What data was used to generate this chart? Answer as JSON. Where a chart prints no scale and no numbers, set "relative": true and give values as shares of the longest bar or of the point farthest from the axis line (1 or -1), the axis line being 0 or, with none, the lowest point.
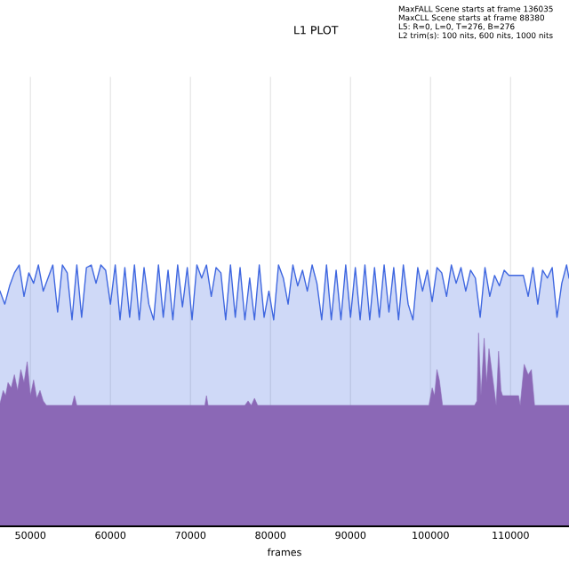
{
  "chart_data": {
    "type": "area",
    "title": "L1 PLOT",
    "xlabel": "frames",
    "relative": true,
    "annotations": [
      "MaxFALL Scene starts at frame 136035",
      "MaxCLL Scene starts at frame 88380",
      "L5: R=0, L=0, T=276, B=276",
      "L2 trim(s): 100 nits, 600 nits, 1000 nits"
    ],
    "xlim": [
      46200,
      117300
    ],
    "xticks": [
      50000,
      60000,
      70000,
      80000,
      90000,
      100000,
      110000
    ],
    "grid": "x",
    "series": [
      {
        "color": "#3f67e0",
        "x": [
          46200,
          46800,
          47400,
          48000,
          48600,
          49200,
          49800,
          50400,
          51000,
          51600,
          52200,
          52800,
          53400,
          54000,
          54600,
          55200,
          55800,
          56400,
          57000,
          57600,
          58200,
          58800,
          59400,
          60000,
          60600,
          61200,
          61800,
          62400,
          63000,
          63600,
          64200,
          64800,
          65400,
          66000,
          66600,
          67200,
          67800,
          68400,
          69000,
          69600,
          70200,
          70800,
          71400,
          72000,
          72600,
          73200,
          73800,
          74400,
          75000,
          75600,
          76200,
          76800,
          77400,
          78000,
          78600,
          79200,
          79800,
          80400,
          81000,
          81600,
          82200,
          82800,
          83400,
          84000,
          84600,
          85200,
          85800,
          86400,
          87000,
          87600,
          88200,
          88800,
          89400,
          90000,
          90600,
          91200,
          91800,
          92400,
          93000,
          93600,
          94200,
          94800,
          95400,
          96000,
          96600,
          97200,
          97800,
          98400,
          99000,
          99600,
          100200,
          100800,
          101400,
          102000,
          102600,
          103200,
          103800,
          104400,
          105000,
          105600,
          106200,
          106800,
          107400,
          108000,
          108600,
          109200,
          109800,
          110400,
          111000,
          111600,
          112200,
          112800,
          113400,
          114000,
          114600,
          115200,
          115800,
          116400,
          117000,
          117300
        ],
        "values": [
          0.9,
          0.85,
          0.92,
          0.97,
          1.0,
          0.88,
          0.97,
          0.93,
          1.0,
          0.9,
          0.95,
          1.0,
          0.82,
          1.0,
          0.97,
          0.79,
          1.0,
          0.8,
          0.99,
          1.0,
          0.93,
          1.0,
          0.98,
          0.85,
          1.0,
          0.79,
          0.99,
          0.8,
          1.0,
          0.79,
          0.99,
          0.85,
          0.79,
          1.0,
          0.8,
          0.98,
          0.79,
          1.0,
          0.84,
          0.99,
          0.79,
          1.0,
          0.95,
          1.0,
          0.88,
          0.99,
          0.97,
          0.79,
          1.0,
          0.8,
          0.99,
          0.79,
          0.95,
          0.79,
          1.0,
          0.8,
          0.9,
          0.79,
          1.0,
          0.95,
          0.85,
          1.0,
          0.92,
          0.98,
          0.9,
          1.0,
          0.93,
          0.79,
          1.0,
          0.79,
          0.98,
          0.79,
          1.0,
          0.8,
          0.99,
          0.79,
          1.0,
          0.79,
          0.99,
          0.8,
          1.0,
          0.82,
          0.99,
          0.79,
          1.0,
          0.85,
          0.79,
          0.99,
          0.9,
          0.98,
          0.86,
          0.99,
          0.97,
          0.88,
          1.0,
          0.93,
          0.99,
          0.9,
          0.98,
          0.95,
          0.8,
          0.99,
          0.88,
          0.96,
          0.92,
          0.98,
          0.96,
          0.96,
          0.96,
          0.96,
          0.88,
          0.99,
          0.85,
          0.98,
          0.95,
          0.99,
          0.8,
          0.93,
          1.0,
          0.95
        ]
      },
      {
        "color": "#8b68b6",
        "x": [
          46200,
          46600,
          46900,
          47200,
          47600,
          48000,
          48400,
          48800,
          49200,
          49600,
          50000,
          50400,
          50800,
          51200,
          51600,
          52000,
          55200,
          55500,
          55800,
          71800,
          72000,
          72200,
          76800,
          77200,
          77600,
          78000,
          78400,
          99800,
          100200,
          100500,
          100800,
          101100,
          101500,
          105500,
          105800,
          106000,
          106300,
          106700,
          107000,
          107300,
          108200,
          108500,
          108800,
          109000,
          111000,
          111200,
          111700,
          112200,
          112600,
          113000,
          117300
        ],
        "values": [
          0.47,
          0.52,
          0.5,
          0.55,
          0.53,
          0.58,
          0.52,
          0.6,
          0.55,
          0.63,
          0.5,
          0.56,
          0.49,
          0.52,
          0.48,
          0.463,
          0.463,
          0.5,
          0.463,
          0.463,
          0.5,
          0.463,
          0.463,
          0.48,
          0.463,
          0.49,
          0.463,
          0.463,
          0.53,
          0.5,
          0.6,
          0.56,
          0.463,
          0.463,
          0.48,
          0.74,
          0.5,
          0.72,
          0.55,
          0.68,
          0.463,
          0.67,
          0.52,
          0.5,
          0.5,
          0.463,
          0.62,
          0.58,
          0.6,
          0.463,
          0.463
        ]
      }
    ]
  }
}
